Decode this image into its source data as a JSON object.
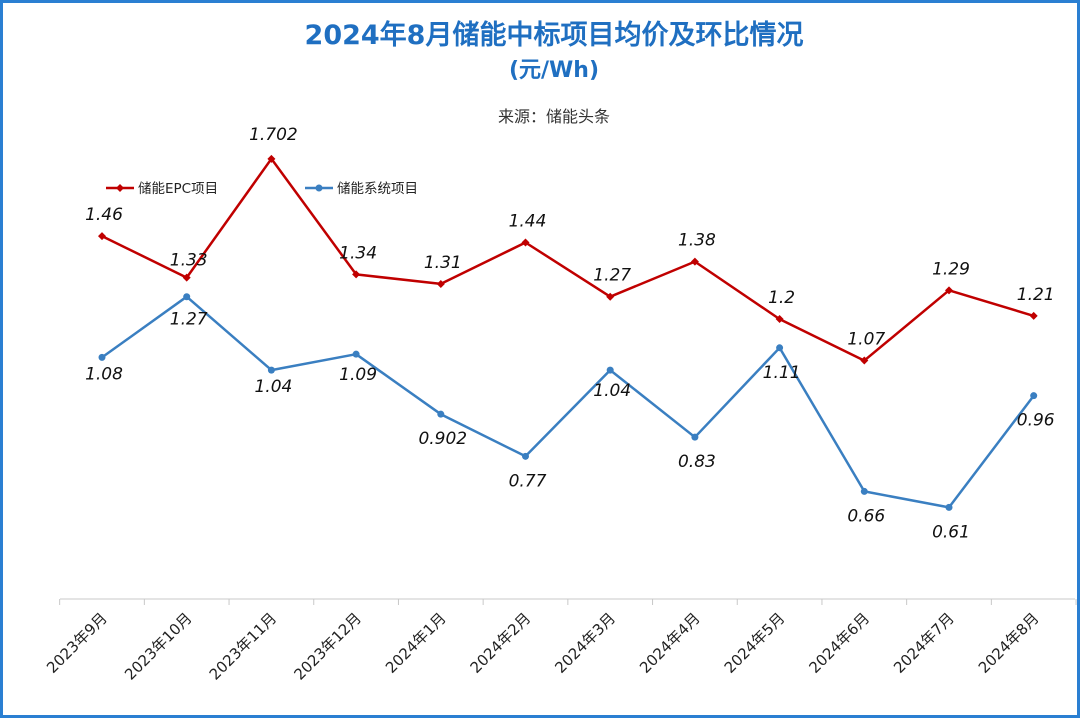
{
  "chart_data": {
    "type": "line",
    "title": "2024年8月储能中标项目均价及环比情况",
    "subtitle": "(元/Wh)",
    "source": "来源：储能头条",
    "categories": [
      "2023年9月",
      "2023年10月",
      "2023年11月",
      "2023年12月",
      "2024年1月",
      "2024年2月",
      "2024年3月",
      "2024年4月",
      "2024年5月",
      "2024年6月",
      "2024年7月",
      "2024年8月"
    ],
    "series": [
      {
        "name": "储能EPC项目",
        "color": "#c00000",
        "marker": "diamond",
        "values": [
          1.46,
          1.33,
          1.702,
          1.34,
          1.31,
          1.44,
          1.27,
          1.38,
          1.2,
          1.07,
          1.29,
          1.21
        ],
        "labels": [
          "1.46",
          "1.33",
          "1.702",
          "1.34",
          "1.31",
          "1.44",
          "1.27",
          "1.38",
          "1.2",
          "1.07",
          "1.29",
          "1.21"
        ]
      },
      {
        "name": "储能系统项目",
        "color": "#3a7fc1",
        "marker": "circle",
        "values": [
          1.08,
          1.27,
          1.04,
          1.09,
          0.902,
          0.77,
          1.04,
          0.83,
          1.11,
          0.66,
          0.61,
          0.96
        ],
        "labels": [
          "1.08",
          "1.27",
          "1.04",
          "1.09",
          "0.902",
          "0.77",
          "1.04",
          "0.83",
          "1.11",
          "0.66",
          "0.61",
          "0.96"
        ]
      }
    ],
    "xlabel": "",
    "ylabel": "",
    "ylim": [
      0,
      2.0
    ],
    "grid": false,
    "legend": "top-left"
  }
}
